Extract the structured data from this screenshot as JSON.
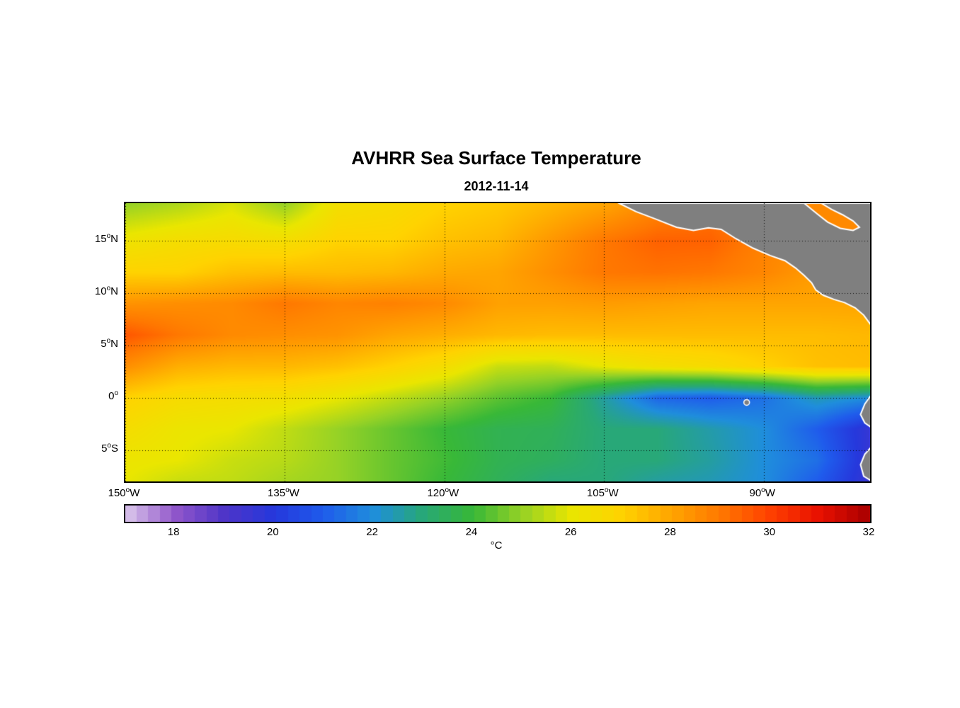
{
  "title": "AVHRR Sea Surface Temperature",
  "subtitle": "2012-11-14",
  "colors": {
    "land": "#7f7f7f",
    "coastline": "#ffffff",
    "gridline": "#000000",
    "plot_border": "#000000",
    "background": "#ffffff"
  },
  "chart_data": {
    "type": "heatmap",
    "title": "AVHRR Sea Surface Temperature",
    "subtitle": "2012-11-14",
    "units": "°C",
    "extent": {
      "lon_min": -150,
      "lon_max": -80,
      "lat_min": -8,
      "lat_max": 18.6
    },
    "grid": {
      "lons": [
        -150,
        -145,
        -140,
        -135,
        -130,
        -125,
        -120,
        -115,
        -110,
        -105,
        -100,
        -95,
        -90,
        -85,
        -80
      ],
      "lats": [
        18.5,
        15,
        12,
        9,
        6,
        3,
        0,
        -3,
        -6,
        -8
      ],
      "sst": [
        [
          25.0,
          25.3,
          25.8,
          25.0,
          26.4,
          26.6,
          27.0,
          27.2,
          27.6,
          28.0,
          28.6,
          29.0,
          28.5,
          28.5,
          28.5
        ],
        [
          26.2,
          26.5,
          26.6,
          26.5,
          27.0,
          27.0,
          27.4,
          27.6,
          28.3,
          29.0,
          29.4,
          29.4,
          28.8,
          28.5,
          28.5
        ],
        [
          27.0,
          27.0,
          27.4,
          27.5,
          27.5,
          27.6,
          27.9,
          28.0,
          28.5,
          29.0,
          29.1,
          29.0,
          28.7,
          28.2,
          28.5
        ],
        [
          28.4,
          28.5,
          28.6,
          29.0,
          28.7,
          28.8,
          28.6,
          28.1,
          28.1,
          28.2,
          28.1,
          28.0,
          28.0,
          28.0,
          28.0
        ],
        [
          29.6,
          29.0,
          28.6,
          28.5,
          28.4,
          28.0,
          27.8,
          27.6,
          27.5,
          27.5,
          27.5,
          27.5,
          27.5,
          27.5,
          27.6
        ],
        [
          28.5,
          27.8,
          27.6,
          27.6,
          27.4,
          27.0,
          26.5,
          25.6,
          25.5,
          26.0,
          26.4,
          26.6,
          27.0,
          27.4,
          27.5
        ],
        [
          27.0,
          26.6,
          26.5,
          26.4,
          26.0,
          25.5,
          25.0,
          24.4,
          24.0,
          22.6,
          21.2,
          21.0,
          21.4,
          22.4,
          22.0
        ],
        [
          26.5,
          26.1,
          26.0,
          25.5,
          25.0,
          24.5,
          24.0,
          23.6,
          23.5,
          23.0,
          23.0,
          22.5,
          22.0,
          21.0,
          19.6
        ],
        [
          26.1,
          26.0,
          25.6,
          25.4,
          25.0,
          24.5,
          24.1,
          23.6,
          23.4,
          23.0,
          23.0,
          22.6,
          22.0,
          21.4,
          19.6
        ],
        [
          26.0,
          25.6,
          25.5,
          25.2,
          25.0,
          24.5,
          24.0,
          23.5,
          23.0,
          23.0,
          22.6,
          22.4,
          22.0,
          21.0,
          19.5
        ]
      ]
    },
    "colormap": {
      "range": [
        17,
        32
      ],
      "stops": [
        [
          17,
          "#DCC9EC"
        ],
        [
          18,
          "#9257CB"
        ],
        [
          19,
          "#4F35C8"
        ],
        [
          20,
          "#2638DC"
        ],
        [
          21,
          "#1F5CEC"
        ],
        [
          22,
          "#1F8EDC"
        ],
        [
          23,
          "#28A878"
        ],
        [
          24,
          "#38B838"
        ],
        [
          25,
          "#96D226"
        ],
        [
          26,
          "#EAE600"
        ],
        [
          27,
          "#FFD300"
        ],
        [
          28,
          "#FFA500"
        ],
        [
          29,
          "#FF7800"
        ],
        [
          30,
          "#FF4000"
        ],
        [
          31,
          "#E81000"
        ],
        [
          32,
          "#A80000"
        ]
      ]
    },
    "colorbar": {
      "ticks": [
        "18",
        "20",
        "22",
        "24",
        "26",
        "28",
        "30",
        "32"
      ],
      "tick_values": [
        18,
        20,
        22,
        24,
        26,
        28,
        30,
        32
      ],
      "label": "°C"
    },
    "x_ticks": [
      {
        "lon": -150,
        "label": "150°W"
      },
      {
        "lon": -135,
        "label": "135°W"
      },
      {
        "lon": -120,
        "label": "120°W"
      },
      {
        "lon": -105,
        "label": "105°W"
      },
      {
        "lon": -90,
        "label": "90°W"
      }
    ],
    "y_ticks": [
      {
        "lat": 15,
        "label": "15°N"
      },
      {
        "lat": 10,
        "label": "10°N"
      },
      {
        "lat": 5,
        "label": "5°N"
      },
      {
        "lat": 0,
        "label": "0°"
      },
      {
        "lat": -5,
        "label": "5°S"
      }
    ],
    "gridlines": {
      "lats": [
        15,
        10,
        5,
        0,
        -5
      ],
      "lons": [
        -150,
        -135,
        -120,
        -105,
        -90
      ]
    },
    "land_polygons": [
      {
        "name": "central-america",
        "points": [
          [
            -103.6,
            18.6
          ],
          [
            -102.0,
            17.8
          ],
          [
            -100.2,
            17.1
          ],
          [
            -98.2,
            16.3
          ],
          [
            -96.6,
            16.0
          ],
          [
            -95.2,
            16.25
          ],
          [
            -94.0,
            16.1
          ],
          [
            -92.6,
            15.2
          ],
          [
            -91.0,
            14.3
          ],
          [
            -89.4,
            13.6
          ],
          [
            -88.0,
            13.1
          ],
          [
            -87.0,
            12.4
          ],
          [
            -86.2,
            11.7
          ],
          [
            -85.5,
            11.0
          ],
          [
            -85.1,
            10.3
          ],
          [
            -84.4,
            9.8
          ],
          [
            -83.4,
            9.4
          ],
          [
            -82.4,
            9.1
          ],
          [
            -81.4,
            8.6
          ],
          [
            -80.6,
            7.9
          ],
          [
            -80.1,
            7.2
          ],
          [
            -79.8,
            6.8
          ],
          [
            -79.8,
            18.6
          ]
        ]
      },
      {
        "name": "south-america-north",
        "points": [
          [
            -79.8,
            0.4
          ],
          [
            -80.5,
            -0.6
          ],
          [
            -80.9,
            -1.6
          ],
          [
            -80.5,
            -2.4
          ],
          [
            -79.8,
            -2.9
          ]
        ]
      },
      {
        "name": "south-america-south",
        "points": [
          [
            -79.8,
            -4.6
          ],
          [
            -80.5,
            -5.4
          ],
          [
            -80.9,
            -6.4
          ],
          [
            -80.6,
            -7.5
          ],
          [
            -79.8,
            -8.0
          ]
        ]
      }
    ],
    "sea_inlets": [
      {
        "name": "caribbean-inlet",
        "sst": 28.6,
        "points": [
          [
            -86.2,
            18.6
          ],
          [
            -85.0,
            17.6
          ],
          [
            -84.0,
            16.8
          ],
          [
            -82.8,
            16.2
          ],
          [
            -81.6,
            16.0
          ],
          [
            -81.0,
            16.3
          ],
          [
            -81.6,
            16.9
          ],
          [
            -82.6,
            17.5
          ],
          [
            -83.6,
            18.0
          ],
          [
            -84.6,
            18.6
          ]
        ]
      }
    ],
    "islands": [
      {
        "name": "galapagos-island",
        "lon": -91.6,
        "lat": -0.45
      }
    ]
  }
}
